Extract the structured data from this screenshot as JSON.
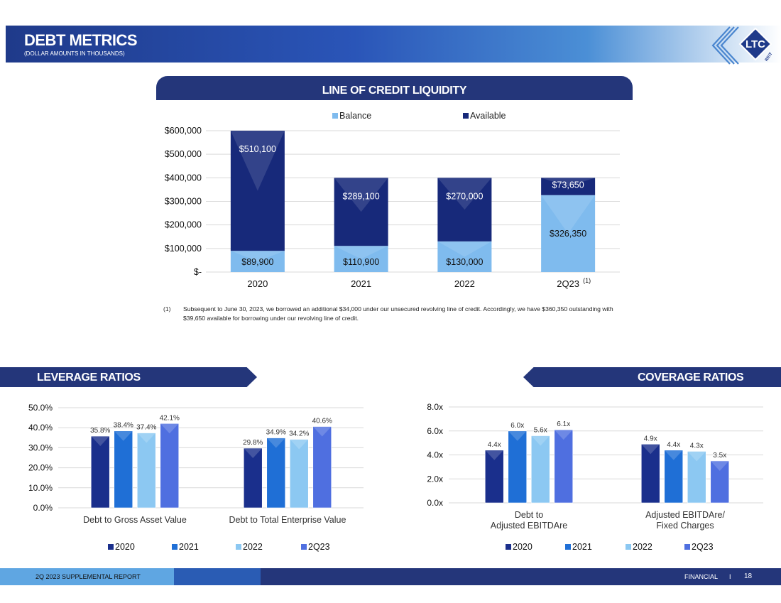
{
  "header": {
    "title": "DEBT METRICS",
    "subtitle": "(DOLLAR AMOUNTS IN THOUSANDS)",
    "logo_text": "LTC",
    "logo_subtext": "REIT"
  },
  "colors": {
    "navy": "#24367a",
    "year2020": "#1a2f8c",
    "year2021": "#1f6fd6",
    "year2022": "#8cc8f2",
    "year2q23": "#4f6fe0",
    "balance": "#7fbbee",
    "available": "#17297a"
  },
  "loc_section": {
    "title": "LINE OF CREDIT LIQUIDITY",
    "footnote_number": "(1)",
    "footnote_text": "Subsequent to June 30, 2023, we borrowed an additional $34,000 under our unsecured revolving line of credit. Accordingly, we have $360,350 outstanding with $39,650 available for borrowing under our revolving line of credit."
  },
  "leverage_section": {
    "title": "LEVERAGE RATIOS"
  },
  "coverage_section": {
    "title": "COVERAGE RATIOS"
  },
  "chart_data": [
    {
      "type": "bar",
      "stacked": true,
      "title": "LINE OF CREDIT LIQUIDITY",
      "categories": [
        "2020",
        "2021",
        "2022",
        "2Q23"
      ],
      "category_superscript": [
        "",
        "",
        "",
        "(1)"
      ],
      "series": [
        {
          "name": "Balance",
          "values": [
            89900,
            110900,
            130000,
            326350
          ],
          "labels": [
            "$89,900",
            "$110,900",
            "$130,000",
            "$326,350"
          ]
        },
        {
          "name": "Available",
          "values": [
            510100,
            289100,
            270000,
            73650
          ],
          "labels": [
            "$510,100",
            "$289,100",
            "$270,000",
            "$73,650"
          ]
        }
      ],
      "ylim": [
        0,
        600000
      ],
      "yticks": [
        0,
        100000,
        200000,
        300000,
        400000,
        500000,
        600000
      ],
      "ytick_labels": [
        "$-",
        "$100,000",
        "$200,000",
        "$300,000",
        "$400,000",
        "$500,000",
        "$600,000"
      ],
      "legend": "top",
      "grid": true
    },
    {
      "type": "bar",
      "title": "LEVERAGE RATIOS",
      "categories": [
        "Debt to Gross Asset Value",
        "Debt to Total Enterprise Value"
      ],
      "series": [
        {
          "name": "2020",
          "values": [
            35.8,
            29.8
          ],
          "labels": [
            "35.8%",
            "29.8%"
          ]
        },
        {
          "name": "2021",
          "values": [
            38.4,
            34.9
          ],
          "labels": [
            "38.4%",
            "34.9%"
          ]
        },
        {
          "name": "2022",
          "values": [
            37.4,
            34.2
          ],
          "labels": [
            "37.4%",
            "34.2%"
          ]
        },
        {
          "name": "2Q23",
          "values": [
            42.1,
            40.6
          ],
          "labels": [
            "42.1%",
            "40.6%"
          ]
        }
      ],
      "ylim": [
        0,
        50
      ],
      "yticks": [
        0,
        10,
        20,
        30,
        40,
        50
      ],
      "ytick_labels": [
        "0.0%",
        "10.0%",
        "20.0%",
        "30.0%",
        "40.0%",
        "50.0%"
      ],
      "legend": "bottom",
      "grid": true
    },
    {
      "type": "bar",
      "title": "COVERAGE RATIOS",
      "categories": [
        "Debt to Adjusted EBITDAre",
        "Adjusted EBITDAre/ Fixed Charges"
      ],
      "category_lines": [
        [
          "Debt to",
          "Adjusted EBITDAre"
        ],
        [
          "Adjusted EBITDAre/",
          "Fixed Charges"
        ]
      ],
      "series": [
        {
          "name": "2020",
          "values": [
            4.4,
            4.9
          ],
          "labels": [
            "4.4x",
            "4.9x"
          ]
        },
        {
          "name": "2021",
          "values": [
            6.0,
            4.4
          ],
          "labels": [
            "6.0x",
            "4.4x"
          ]
        },
        {
          "name": "2022",
          "values": [
            5.6,
            4.3
          ],
          "labels": [
            "5.6x",
            "4.3x"
          ]
        },
        {
          "name": "2Q23",
          "values": [
            6.1,
            3.5
          ],
          "labels": [
            "6.1x",
            "3.5x"
          ]
        }
      ],
      "ylim": [
        0,
        8
      ],
      "yticks": [
        0,
        2,
        4,
        6,
        8
      ],
      "ytick_labels": [
        "0.0x",
        "2.0x",
        "4.0x",
        "6.0x",
        "8.0x"
      ],
      "legend": "bottom",
      "grid": true
    }
  ],
  "footer": {
    "left_text": "2Q 2023 SUPPLEMENTAL REPORT",
    "section": "FINANCIAL",
    "separator": "I",
    "page": "18"
  }
}
